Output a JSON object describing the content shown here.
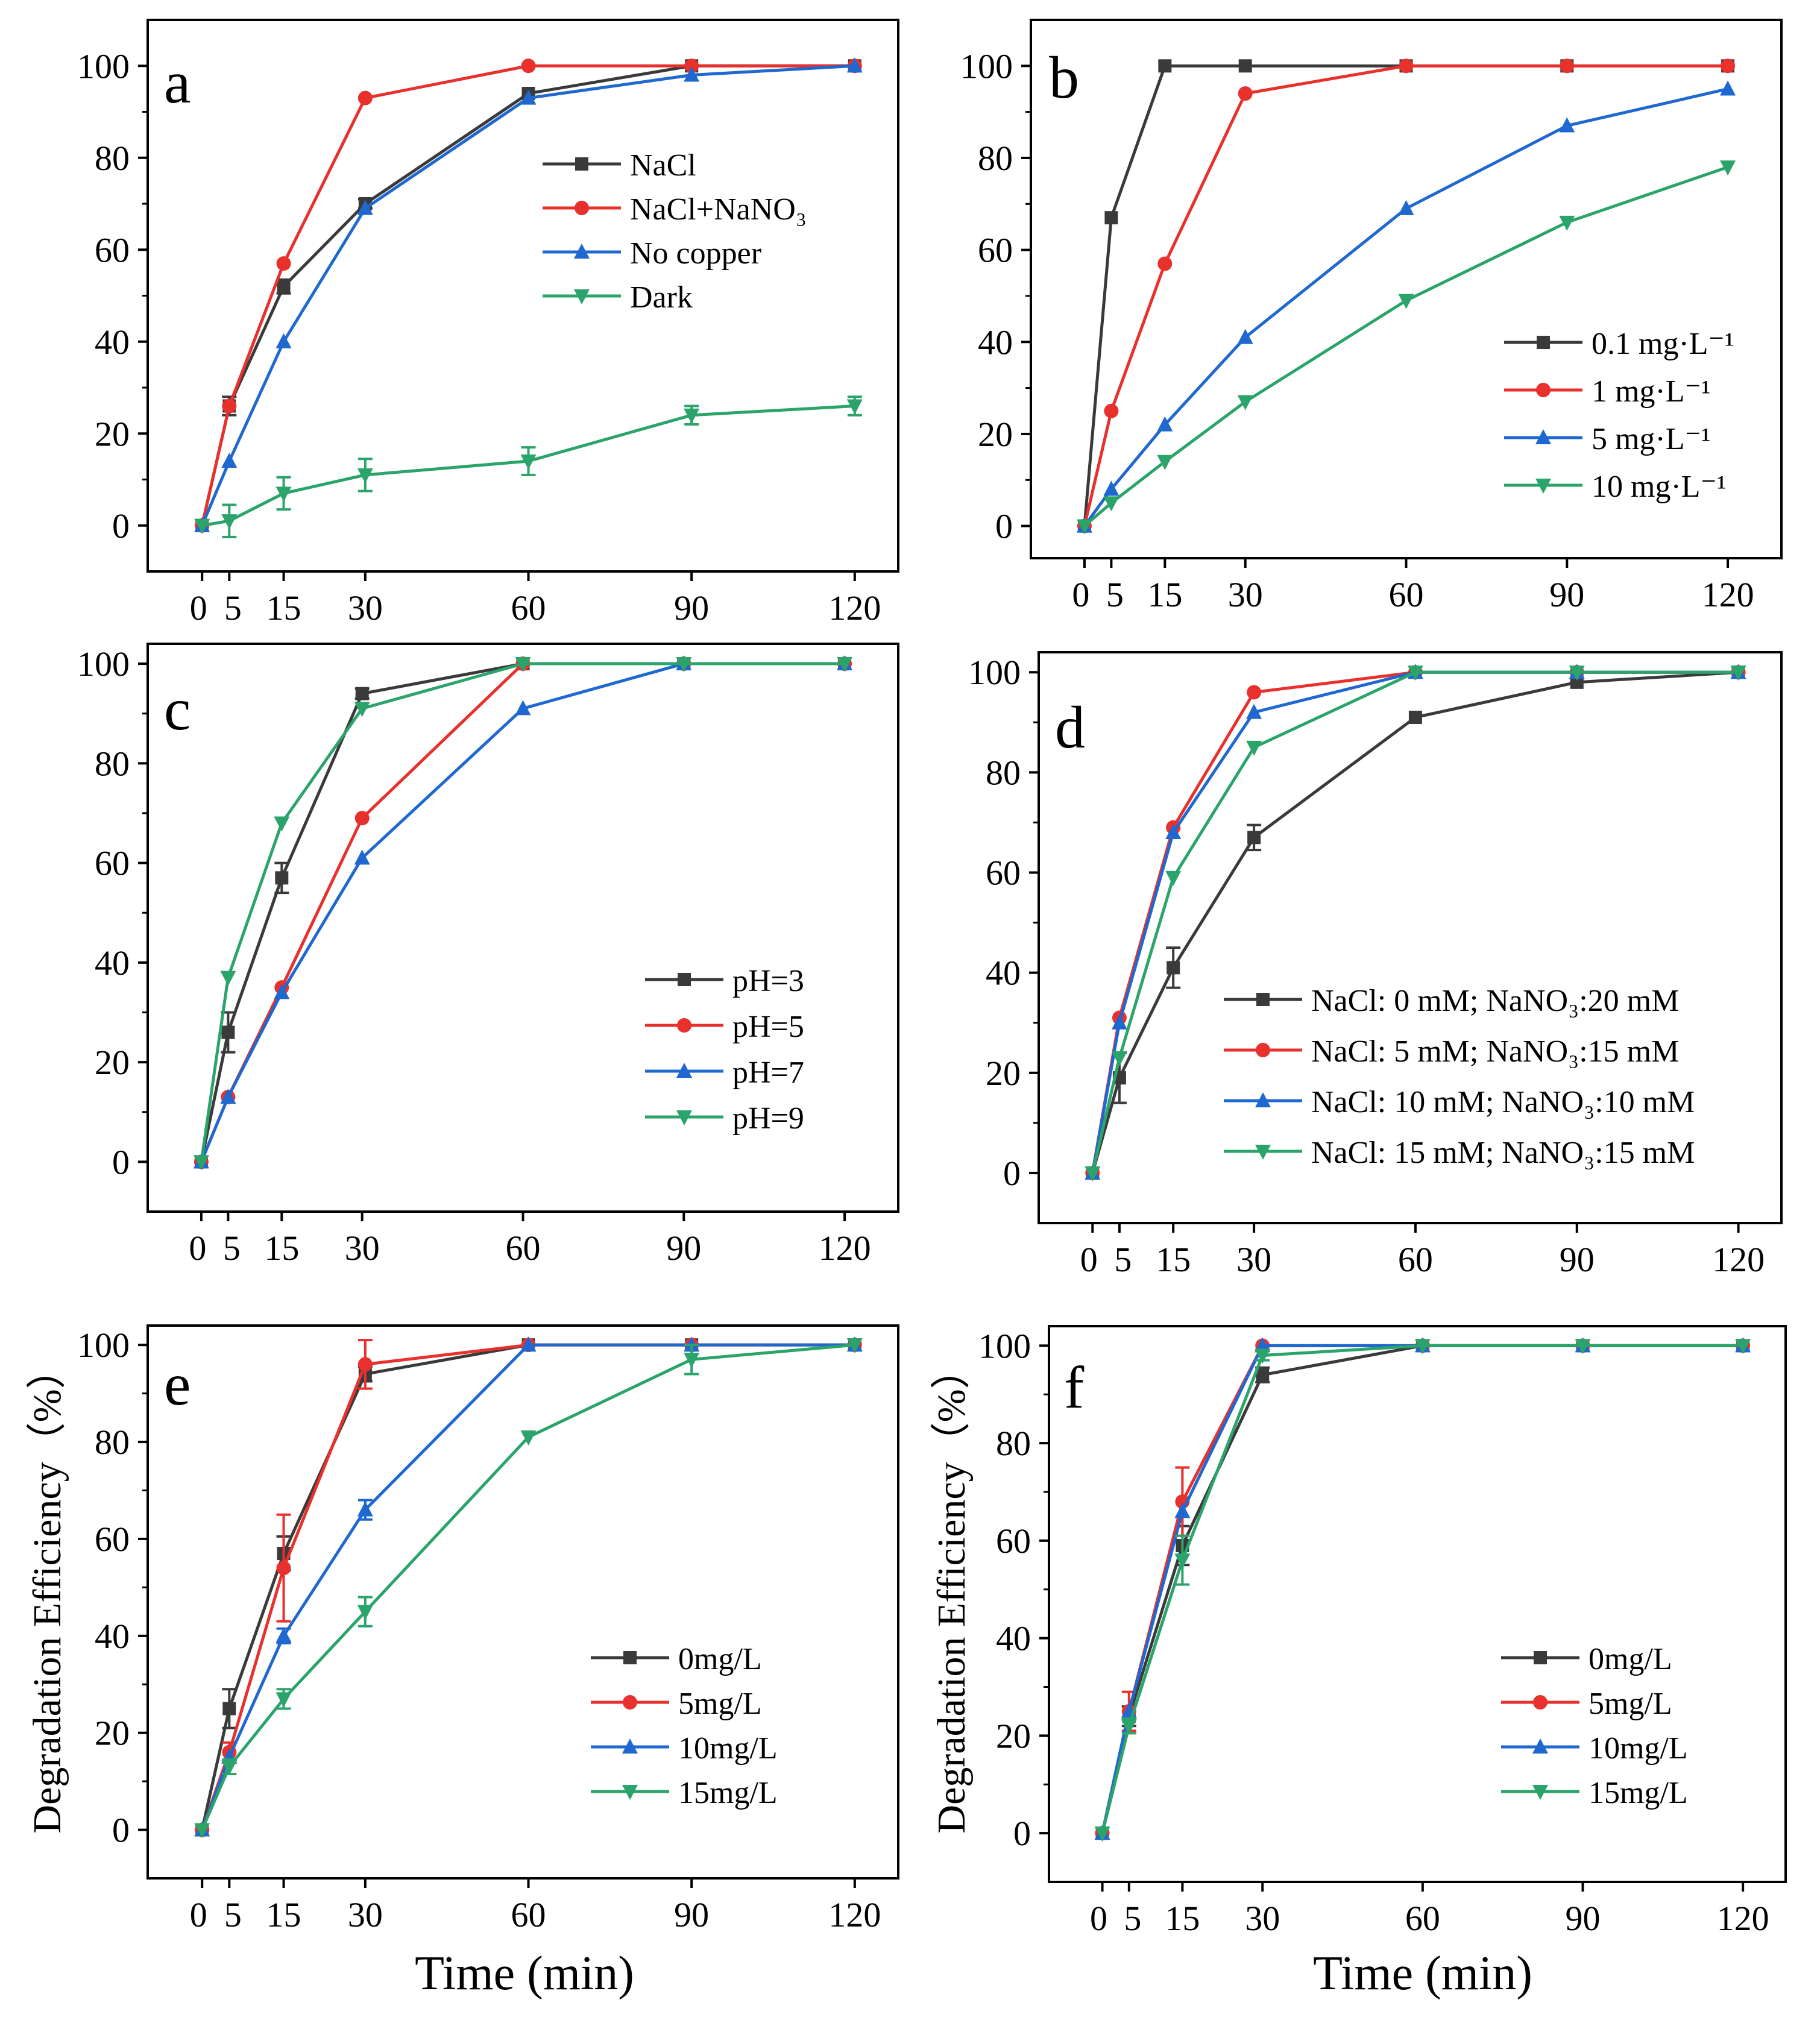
{
  "colors": {
    "black_series": "#3a3a3a",
    "red_series": "#e8302c",
    "blue_series": "#1f68d0",
    "green_series": "#2aa46a",
    "axis": "#000000"
  },
  "figure": {
    "xlabel": "Time (min)",
    "ylabel": "Degradation Efficiency（%）"
  },
  "chart_data": [
    {
      "id": "a",
      "panel_label": "a",
      "type": "line",
      "x": [
        0,
        5,
        15,
        30,
        60,
        90,
        120
      ],
      "xticks": [
        "0",
        "5",
        "15",
        "30",
        "60",
        "90",
        "120"
      ],
      "yticks": [
        "0",
        "20",
        "40",
        "60",
        "80",
        "100"
      ],
      "xlim": [
        -10,
        128
      ],
      "ylim": [
        -10,
        110
      ],
      "legend": "center-right",
      "series": [
        {
          "name": "NaCl",
          "marker": "square",
          "color": "#3a3a3a",
          "values": [
            0,
            26,
            52,
            70,
            94,
            100,
            100
          ],
          "errors": [
            0,
            2,
            1.5,
            1,
            0,
            0,
            0
          ]
        },
        {
          "name": "NaCl+NaNO₃",
          "marker": "circle",
          "color": "#e8302c",
          "values": [
            0,
            26,
            57,
            93,
            100,
            100,
            100
          ],
          "errors": [
            0,
            0,
            0,
            0,
            0,
            0,
            0
          ]
        },
        {
          "name": "No copper",
          "marker": "triangle-up",
          "color": "#1f68d0",
          "values": [
            0,
            14,
            40,
            69,
            93,
            98,
            100
          ],
          "errors": [
            0,
            0,
            0,
            0,
            0,
            0,
            0
          ]
        },
        {
          "name": "Dark",
          "marker": "triangle-down",
          "color": "#2aa46a",
          "values": [
            0,
            1,
            7,
            11,
            14,
            24,
            26
          ],
          "errors": [
            0,
            3.5,
            3.5,
            3.5,
            3,
            2,
            2
          ]
        }
      ]
    },
    {
      "id": "b",
      "panel_label": "b",
      "type": "line",
      "x": [
        0,
        5,
        15,
        30,
        60,
        90,
        120
      ],
      "xticks": [
        "0",
        "5",
        "15",
        "30",
        "60",
        "90",
        "120"
      ],
      "yticks": [
        "0",
        "20",
        "40",
        "60",
        "80",
        "100"
      ],
      "xlim": [
        -10,
        130
      ],
      "ylim": [
        -7,
        110
      ],
      "legend": "bottom-right",
      "series": [
        {
          "name": "0.1 mg·L⁻¹",
          "marker": "square",
          "color": "#3a3a3a",
          "values": [
            0,
            67,
            100,
            100,
            100,
            100,
            100
          ],
          "errors": [
            0,
            0,
            0,
            0,
            0,
            0,
            0
          ]
        },
        {
          "name": "1 mg·L⁻¹",
          "marker": "circle",
          "color": "#e8302c",
          "values": [
            0,
            25,
            57,
            94,
            100,
            100,
            100
          ],
          "errors": [
            0,
            0,
            0,
            0,
            0,
            0,
            0
          ]
        },
        {
          "name": "5 mg·L⁻¹",
          "marker": "triangle-up",
          "color": "#1f68d0",
          "values": [
            0,
            8,
            22,
            41,
            69,
            87,
            95
          ],
          "errors": [
            0,
            0,
            0,
            0,
            0,
            0,
            0
          ]
        },
        {
          "name": "10 mg·L⁻¹",
          "marker": "triangle-down",
          "color": "#2aa46a",
          "values": [
            0,
            5,
            14,
            27,
            49,
            66,
            78
          ],
          "errors": [
            0,
            0,
            0,
            0,
            0,
            0,
            0
          ]
        }
      ]
    },
    {
      "id": "c",
      "panel_label": "c",
      "type": "line",
      "x": [
        0,
        5,
        15,
        30,
        60,
        90,
        120
      ],
      "xticks": [
        "0",
        "5",
        "15",
        "30",
        "60",
        "90",
        "120"
      ],
      "yticks": [
        "0",
        "20",
        "40",
        "60",
        "80",
        "100"
      ],
      "xlim": [
        -10,
        130
      ],
      "ylim": [
        -10,
        104
      ],
      "legend": "center-right",
      "series": [
        {
          "name": "pH=3",
          "marker": "square",
          "color": "#3a3a3a",
          "values": [
            0,
            26,
            57,
            94,
            100,
            100,
            100
          ],
          "errors": [
            0,
            4,
            3,
            1,
            0,
            0,
            0
          ]
        },
        {
          "name": "pH=5",
          "marker": "circle",
          "color": "#e8302c",
          "values": [
            0,
            13,
            35,
            69,
            100,
            100,
            100
          ],
          "errors": [
            0,
            0,
            0,
            0,
            0,
            0,
            0
          ]
        },
        {
          "name": "pH=7",
          "marker": "triangle-up",
          "color": "#1f68d0",
          "values": [
            0,
            13,
            34,
            61,
            91,
            100,
            100
          ],
          "errors": [
            0,
            0,
            0,
            0,
            0,
            0,
            0
          ]
        },
        {
          "name": "pH=9",
          "marker": "triangle-down",
          "color": "#2aa46a",
          "values": [
            0,
            37,
            68,
            91,
            100,
            100,
            100
          ],
          "errors": [
            0,
            0,
            0,
            0,
            0,
            0,
            0
          ]
        }
      ]
    },
    {
      "id": "d",
      "panel_label": "d",
      "type": "line",
      "x": [
        0,
        5,
        15,
        30,
        60,
        90,
        120
      ],
      "xticks": [
        "0",
        "5",
        "15",
        "30",
        "60",
        "90",
        "120"
      ],
      "yticks": [
        "0",
        "20",
        "40",
        "60",
        "80",
        "100"
      ],
      "xlim": [
        -10,
        128
      ],
      "ylim": [
        -10,
        104
      ],
      "legend": "bottom-right",
      "series": [
        {
          "name": "NaCl: 0 mM; NaNO₃:20 mM",
          "marker": "square",
          "color": "#3a3a3a",
          "values": [
            0,
            19,
            41,
            67,
            91,
            98,
            100
          ],
          "errors": [
            0,
            5,
            4,
            2.5,
            0,
            0,
            0
          ]
        },
        {
          "name": "NaCl: 5 mM; NaNO₃:15 mM",
          "marker": "circle",
          "color": "#e8302c",
          "values": [
            0,
            31,
            69,
            96,
            100,
            100,
            100
          ],
          "errors": [
            0,
            0,
            0,
            0,
            0,
            0,
            0
          ]
        },
        {
          "name": "NaCl: 10 mM; NaNO₃:10 mM",
          "marker": "triangle-up",
          "color": "#1f68d0",
          "values": [
            0,
            30,
            68,
            92,
            100,
            100,
            100
          ],
          "errors": [
            0,
            0,
            0,
            0,
            0,
            0,
            0
          ]
        },
        {
          "name": "NaCl: 15 mM; NaNO₃:15 mM",
          "marker": "triangle-down",
          "color": "#2aa46a",
          "values": [
            0,
            23,
            59,
            85,
            100,
            100,
            100
          ],
          "errors": [
            0,
            0,
            0,
            0,
            0,
            0,
            0
          ]
        }
      ]
    },
    {
      "id": "e",
      "panel_label": "e",
      "type": "line",
      "x": [
        0,
        5,
        15,
        30,
        60,
        90,
        120
      ],
      "xticks": [
        "0",
        "5",
        "15",
        "30",
        "60",
        "90",
        "120"
      ],
      "yticks": [
        "0",
        "20",
        "40",
        "60",
        "80",
        "100"
      ],
      "xlim": [
        -10,
        128
      ],
      "ylim": [
        -10,
        104
      ],
      "legend": "bottom-right",
      "series": [
        {
          "name": "0mg/L",
          "marker": "square",
          "color": "#3a3a3a",
          "values": [
            0,
            25,
            57,
            94,
            100,
            100,
            100
          ],
          "errors": [
            0,
            4,
            3.5,
            1.5,
            0,
            0,
            0
          ]
        },
        {
          "name": "5mg/L",
          "marker": "circle",
          "color": "#e8302c",
          "values": [
            0,
            16,
            54,
            96,
            100,
            100,
            100
          ],
          "errors": [
            0,
            2,
            11,
            5,
            0,
            0,
            0
          ]
        },
        {
          "name": "10mg/L",
          "marker": "triangle-up",
          "color": "#1f68d0",
          "values": [
            0,
            15,
            40,
            66,
            100,
            100,
            100
          ],
          "errors": [
            0,
            0,
            1.5,
            2,
            0,
            0,
            0
          ]
        },
        {
          "name": "15mg/L",
          "marker": "triangle-down",
          "color": "#2aa46a",
          "values": [
            0,
            13,
            27,
            45,
            81,
            97,
            100
          ],
          "errors": [
            0,
            1.5,
            2,
            3,
            0,
            3,
            0
          ]
        }
      ]
    },
    {
      "id": "f",
      "panel_label": "f",
      "type": "line",
      "x": [
        0,
        5,
        15,
        30,
        60,
        90,
        120
      ],
      "xticks": [
        "0",
        "5",
        "15",
        "30",
        "60",
        "90",
        "120"
      ],
      "yticks": [
        "0",
        "20",
        "40",
        "60",
        "80",
        "100"
      ],
      "xlim": [
        -10,
        128
      ],
      "ylim": [
        -10,
        104
      ],
      "legend": "bottom-right",
      "series": [
        {
          "name": "0mg/L",
          "marker": "square",
          "color": "#3a3a3a",
          "values": [
            0,
            24,
            59,
            94,
            100,
            100,
            100
          ],
          "errors": [
            0,
            2,
            4,
            1.5,
            0,
            0,
            0
          ]
        },
        {
          "name": "5mg/L",
          "marker": "circle",
          "color": "#e8302c",
          "values": [
            0,
            25,
            68,
            100,
            100,
            100,
            100
          ],
          "errors": [
            0,
            4,
            7,
            0,
            0,
            0,
            0
          ]
        },
        {
          "name": "10mg/L",
          "marker": "triangle-up",
          "color": "#1f68d0",
          "values": [
            0,
            25,
            66,
            100,
            100,
            100,
            100
          ],
          "errors": [
            0,
            0,
            0,
            0,
            0,
            0,
            0
          ]
        },
        {
          "name": "15mg/L",
          "marker": "triangle-down",
          "color": "#2aa46a",
          "values": [
            0,
            22,
            56,
            98,
            100,
            100,
            100
          ],
          "errors": [
            0,
            1.5,
            5,
            1,
            0,
            0,
            0
          ]
        }
      ]
    }
  ]
}
